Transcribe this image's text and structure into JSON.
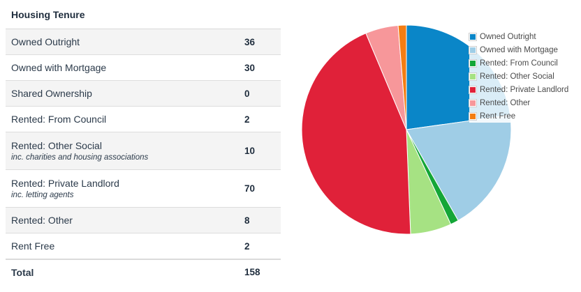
{
  "title": "Housing Tenure",
  "rows": [
    {
      "label": "Owned Outright",
      "note": "",
      "value": "36"
    },
    {
      "label": "Owned with Mortgage",
      "note": "",
      "value": "30"
    },
    {
      "label": "Shared Ownership",
      "note": "",
      "value": "0"
    },
    {
      "label": "Rented: From Council",
      "note": "",
      "value": "2"
    },
    {
      "label": "Rented: Other Social",
      "note": "inc. charities and housing associations",
      "value": "10"
    },
    {
      "label": "Rented: Private Landlord",
      "note": "inc. letting agents",
      "value": "70"
    },
    {
      "label": "Rented: Other",
      "note": "",
      "value": "8"
    },
    {
      "label": "Rent Free",
      "note": "",
      "value": "2"
    }
  ],
  "total": {
    "label": "Total",
    "value": "158"
  },
  "chart_data": {
    "type": "pie",
    "categories": [
      "Owned Outright",
      "Owned with Mortgage",
      "Rented: From Council",
      "Rented: Other Social",
      "Rented: Private Landlord",
      "Rented: Other",
      "Rent Free"
    ],
    "values": [
      36,
      30,
      2,
      10,
      70,
      8,
      2
    ],
    "colors": [
      "#0a86c8",
      "#9fcde6",
      "#14a637",
      "#a6e283",
      "#e02139",
      "#f7979a",
      "#f47d12"
    ],
    "legend_position": "top-right"
  }
}
